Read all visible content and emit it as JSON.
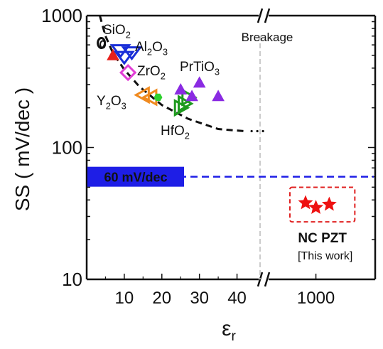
{
  "chart_data": {
    "type": "scatter",
    "xlabel": "ε",
    "xlabel_sub": "r",
    "ylabel": "SS ( mV/dec )",
    "y_scale": "log",
    "ylim": [
      10,
      1000
    ],
    "x_axis": {
      "segment_left": {
        "xlim": [
          0,
          45
        ],
        "ticks": [
          "10",
          "20",
          "30",
          "40"
        ],
        "tick_values": [
          10,
          20,
          30,
          40
        ]
      },
      "segment_right": {
        "xlim": [
          850,
          1200
        ],
        "ticks": [
          "1000"
        ],
        "tick_values": [
          1000
        ]
      },
      "break_marker": "//"
    },
    "y_ticks": [
      "10",
      "100",
      "1000"
    ],
    "y_tick_values": [
      10,
      100,
      1000
    ],
    "grid": false,
    "materials": [
      {
        "name": "SiO",
        "sub": "2",
        "marker": "circle",
        "color": "#111111",
        "points": [
          {
            "x": 3.9,
            "y": 620
          }
        ]
      },
      {
        "name": "Si3N4",
        "marker": "triangle",
        "color": "#e8201c",
        "points": [
          {
            "x": 7,
            "y": 500
          }
        ]
      },
      {
        "name": "Al",
        "sub": "2",
        "tail": "O",
        "sub2": "3",
        "marker": "triangle-down",
        "color": "#1a2fd8",
        "points": [
          {
            "x": 9,
            "y": 540
          },
          {
            "x": 10,
            "y": 480
          },
          {
            "x": 12,
            "y": 520
          }
        ]
      },
      {
        "name": "ZrO",
        "sub": "2",
        "marker": "diamond",
        "color": "#e23fd6",
        "points": [
          {
            "x": 11,
            "y": 370
          }
        ]
      },
      {
        "name": "Y",
        "sub": "2",
        "tail": "O",
        "sub2": "3",
        "marker": "triangle-left",
        "color": "#f08a1f",
        "points": [
          {
            "x": 15,
            "y": 250
          },
          {
            "x": 17,
            "y": 240
          }
        ]
      },
      {
        "name": "La2O3",
        "marker": "hexagon",
        "color": "#2fd12f",
        "points": [
          {
            "x": 19,
            "y": 240
          }
        ]
      },
      {
        "name": "HfO",
        "sub": "2",
        "marker": "triangle-right",
        "color": "#1e9a1e",
        "points": [
          {
            "x": 25,
            "y": 200
          },
          {
            "x": 26,
            "y": 215
          },
          {
            "x": 27,
            "y": 240
          }
        ]
      },
      {
        "name": "PrTiO",
        "sub": "3",
        "marker": "triangle",
        "color": "#8a2be2",
        "points": [
          {
            "x": 25,
            "y": 275
          },
          {
            "x": 30,
            "y": 310
          },
          {
            "x": 28,
            "y": 245
          },
          {
            "x": 35,
            "y": 245
          }
        ]
      }
    ],
    "trend_curve": {
      "style": "dashed",
      "color": "#111111",
      "points": [
        [
          3.5,
          1000
        ],
        [
          5,
          700
        ],
        [
          7,
          520
        ],
        [
          10,
          390
        ],
        [
          14,
          290
        ],
        [
          20,
          210
        ],
        [
          27,
          165
        ],
        [
          35,
          138
        ],
        [
          42,
          133
        ]
      ]
    },
    "reference_line": {
      "value": 60,
      "label": "60 mV/dec",
      "color": "#1e1ee6",
      "style": "dashed"
    },
    "breakage_line": {
      "x": 44,
      "label": "Breakage",
      "color": "#bbbbbb",
      "style": "dashed"
    },
    "this_work": {
      "label": "NC PZT",
      "note": "[This work]",
      "marker": "star",
      "color": "#ee1111",
      "box_color": "#e02020",
      "points": [
        {
          "x": 965,
          "y": 38
        },
        {
          "x": 1000,
          "y": 35
        },
        {
          "x": 1045,
          "y": 37
        }
      ]
    }
  }
}
